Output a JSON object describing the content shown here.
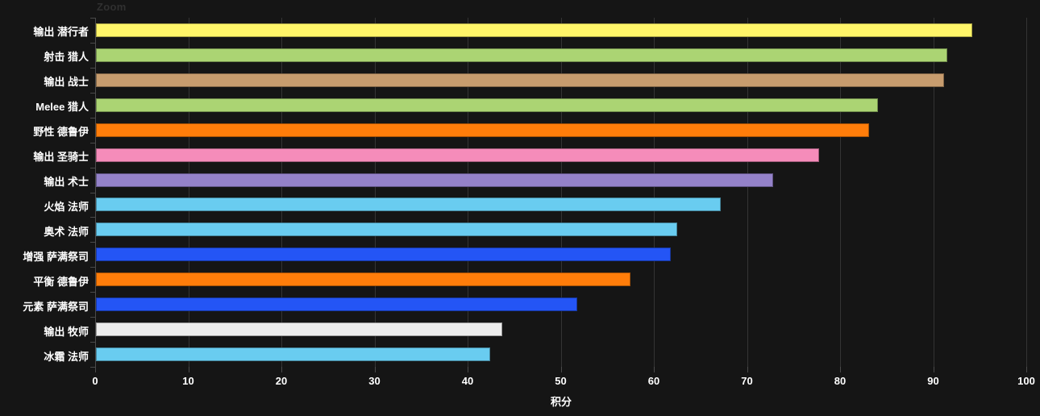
{
  "zoom_label": "Zoom",
  "chart_data": {
    "type": "bar",
    "orientation": "horizontal",
    "title": "Zoom",
    "xlabel": "积分",
    "xlim": [
      0,
      100
    ],
    "xticks": [
      0,
      10,
      20,
      30,
      40,
      50,
      60,
      70,
      80,
      90,
      100
    ],
    "grid": true,
    "legend": "none",
    "background_color": "#151515",
    "gridline_color": "#343434",
    "axis_color": "#4a4a4a",
    "label_color": "#ffffff",
    "categories": [
      "输出 潜行者",
      "射击 猎人",
      "输出 战士",
      "Melee 猎人",
      "野性 德鲁伊",
      "输出 圣骑士",
      "输出 术士",
      "火焰 法师",
      "奥术 法师",
      "增强 萨满祭司",
      "平衡 德鲁伊",
      "元素 萨满祭司",
      "输出 牧师",
      "冰霜 法师"
    ],
    "values": [
      94.1,
      91.4,
      91.1,
      84.0,
      83.0,
      77.7,
      72.7,
      67.1,
      62.4,
      61.7,
      57.4,
      51.7,
      43.6,
      42.3
    ],
    "colors": [
      "#FFF569",
      "#ABD473",
      "#C79C6E",
      "#ABD473",
      "#FF7D0A",
      "#F58CBA",
      "#9482C9",
      "#69CCF0",
      "#69CCF0",
      "#2455F5",
      "#FF7D0A",
      "#2455F5",
      "#EDEDED",
      "#69CCF0"
    ],
    "series_classes": [
      "rogue",
      "hunter",
      "warrior",
      "hunter",
      "druid",
      "paladin",
      "warlock",
      "mage",
      "mage",
      "shaman",
      "druid",
      "shaman",
      "priest",
      "mage"
    ]
  }
}
